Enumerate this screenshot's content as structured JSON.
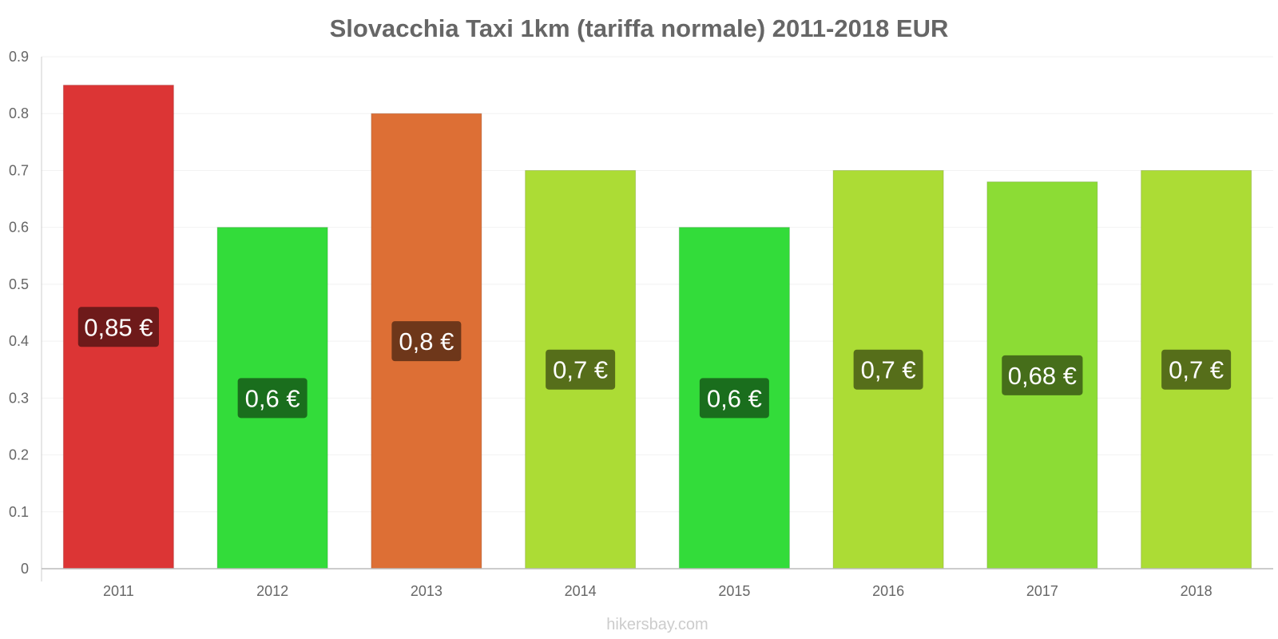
{
  "chart_data": {
    "type": "bar",
    "title": "Slovacchia Taxi 1km (tariffa normale) 2011-2018 EUR",
    "xlabel": "",
    "ylabel": "",
    "ylim": [
      0,
      0.9
    ],
    "yticks": [
      "0",
      "0.1",
      "0.2",
      "0.3",
      "0.4",
      "0.5",
      "0.6",
      "0.7",
      "0.8",
      "0.9"
    ],
    "grid": true,
    "categories": [
      "2011",
      "2012",
      "2013",
      "2014",
      "2015",
      "2016",
      "2017",
      "2018"
    ],
    "values": [
      0.85,
      0.6,
      0.8,
      0.7,
      0.6,
      0.7,
      0.68,
      0.7
    ],
    "labels": [
      "0,85 €",
      "0,6 €",
      "0,8 €",
      "0,7 €",
      "0,6 €",
      "0,7 €",
      "0,68 €",
      "0,7 €"
    ],
    "bar_colors": [
      "#dc3535",
      "#33dc3a",
      "#dd6f35",
      "#acdc35",
      "#33dc3a",
      "#acdc35",
      "#8cdc35",
      "#acdc35"
    ],
    "label_bg_colors": [
      "#6e1a1a",
      "#1a6e1d",
      "#6e371a",
      "#566e1a",
      "#1a6e1d",
      "#566e1a",
      "#466e1a",
      "#566e1a"
    ]
  },
  "watermark": "hikersbay.com"
}
